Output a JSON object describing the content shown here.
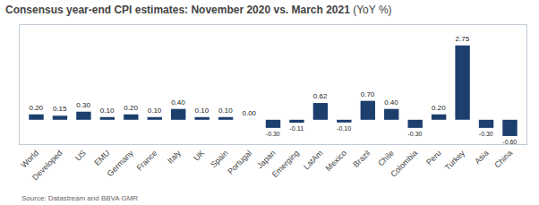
{
  "chart_data": {
    "type": "bar",
    "title": "Consensus year-end CPI estimates: November 2020 vs. March 2021",
    "subtitle": "(YoY %)",
    "annotations": [
      "Source: Datastream and BBVA GMR"
    ],
    "categories": [
      "World",
      "Developed",
      "US",
      "EMU",
      "Germany",
      "France",
      "Italy",
      "UK",
      "Spain",
      "Portugal",
      "Japan",
      "Emerging",
      "LatAm",
      "Mexico",
      "Brazil",
      "Chile",
      "Colombia",
      "Peru",
      "Turkey",
      "Asia",
      "China"
    ],
    "values": [
      0.2,
      0.15,
      0.3,
      0.1,
      0.2,
      0.1,
      0.4,
      0.1,
      0.1,
      0.0,
      -0.3,
      -0.11,
      0.62,
      -0.1,
      0.7,
      0.4,
      -0.3,
      0.2,
      2.75,
      -0.3,
      -0.6
    ],
    "value_labels": [
      "0.20",
      "0.15",
      "0.30",
      "0.10",
      "0.20",
      "0.10",
      "0.40",
      "0.10",
      "0.10",
      "0.00",
      "-0.30",
      "-0.11",
      "0.62",
      "-0.10",
      "0.70",
      "0.40",
      "-0.30",
      "0.20",
      "2.75",
      "-0.30",
      "-0.60"
    ],
    "color": "#1c3f6e",
    "ylim": [
      -0.9,
      3.5
    ],
    "grid": false,
    "tick_labels": "x",
    "data_labels": true
  }
}
